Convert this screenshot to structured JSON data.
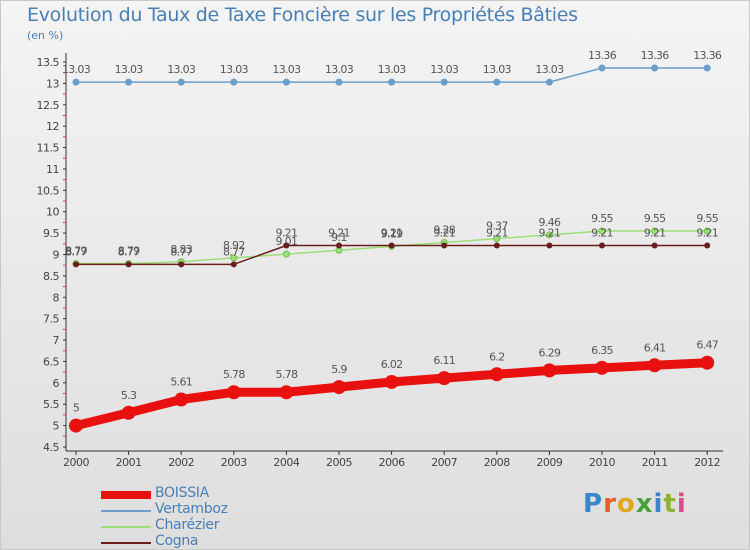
{
  "title": "Evolution du Taux de Taxe Foncière sur les Propriétés Bâties",
  "unit": "(en %)",
  "logo": {
    "text": "Proxiti",
    "letter_colors": [
      "#3a86c9",
      "#e85c2b",
      "#e3a71b",
      "#4aa13a",
      "#3a86c9",
      "#8ab533",
      "#d94e8a"
    ]
  },
  "chart_data": {
    "type": "line",
    "x": [
      "2000",
      "2001",
      "2002",
      "2003",
      "2004",
      "2005",
      "2006",
      "2007",
      "2008",
      "2009",
      "2010",
      "2011",
      "2012"
    ],
    "ylim": [
      4.5,
      13.5
    ],
    "yticks": [
      "4.5",
      "5",
      "5.5",
      "6",
      "6.5",
      "7",
      "7.5",
      "8",
      "8.5",
      "9",
      "9.5",
      "10",
      "10.5",
      "11",
      "11.5",
      "12",
      "12.5",
      "13",
      "13.5"
    ],
    "grid": false,
    "legend_position": "bottom-left",
    "series": [
      {
        "name": "BOISSIA",
        "color": "#e8110f",
        "values": [
          5,
          5.3,
          5.61,
          5.78,
          5.78,
          5.9,
          6.02,
          6.11,
          6.2,
          6.29,
          6.35,
          6.41,
          6.47
        ],
        "labels": [
          "5",
          "5.3",
          "5.61",
          "5.78",
          "5.78",
          "5.9",
          "6.02",
          "6.11",
          "6.2",
          "6.29",
          "6.35",
          "6.41",
          "6.47"
        ]
      },
      {
        "name": "Vertamboz",
        "color": "#6b9ec9",
        "values": [
          13.03,
          13.03,
          13.03,
          13.03,
          13.03,
          13.03,
          13.03,
          13.03,
          13.03,
          13.03,
          13.36,
          13.36,
          13.36
        ],
        "labels": [
          "13.03",
          "13.03",
          "13.03",
          "13.03",
          "13.03",
          "13.03",
          "13.03",
          "13.03",
          "13.03",
          "13.03",
          "13.36",
          "13.36",
          "13.36"
        ]
      },
      {
        "name": "Charézier",
        "color": "#9de07a",
        "values": [
          8.79,
          8.79,
          8.83,
          8.92,
          9.01,
          9.1,
          9.19,
          9.28,
          9.37,
          9.46,
          9.55,
          9.55,
          9.55
        ],
        "labels": [
          "8.79",
          "8.79",
          "8.83",
          "8.92",
          "9.01",
          "9.1",
          "9.19",
          "9.28",
          "9.37",
          "9.46",
          "9.55",
          "9.55",
          "9.55"
        ]
      },
      {
        "name": "Cogna",
        "color": "#6b1c1c",
        "values": [
          8.77,
          8.77,
          8.77,
          8.77,
          9.21,
          9.21,
          9.21,
          9.21,
          9.21,
          9.21,
          9.21,
          9.21,
          9.21
        ],
        "labels": [
          "8.77",
          "8.77",
          "8.77",
          "8.77",
          "9.21",
          "9.21",
          "9.21",
          "9.21",
          "9.21",
          "9.21",
          "9.21",
          "9.21",
          "9.21"
        ]
      }
    ]
  }
}
